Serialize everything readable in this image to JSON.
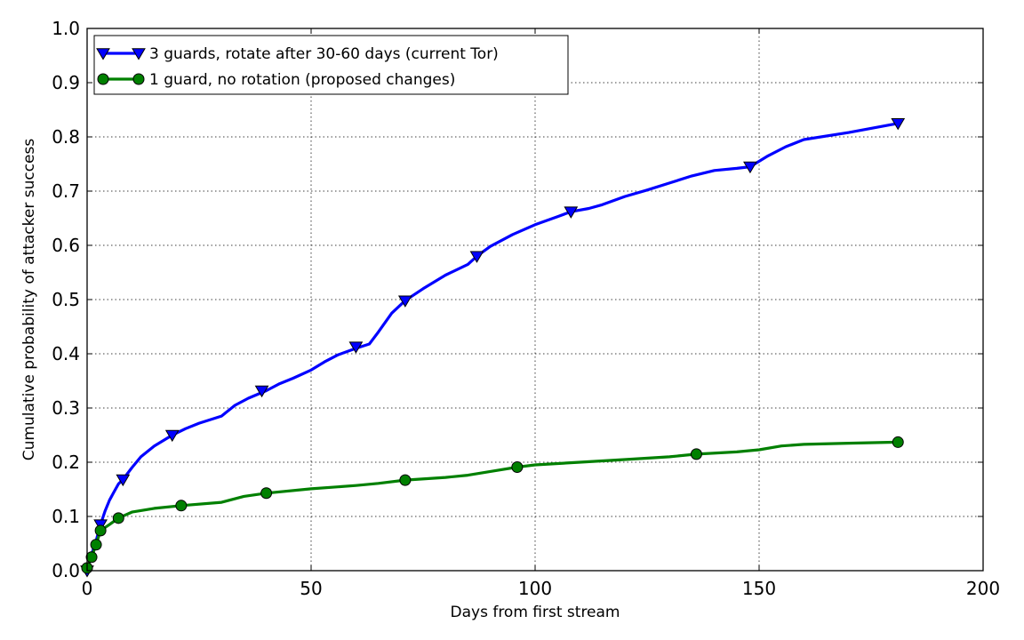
{
  "chart_data": {
    "type": "line",
    "title": "",
    "xlabel": "Days from first stream",
    "ylabel": "Cumulative probability of attacker success",
    "xlim": [
      0,
      200
    ],
    "ylim": [
      0.0,
      1.0
    ],
    "x_ticks": [
      0,
      50,
      100,
      150,
      200
    ],
    "y_ticks": [
      0.0,
      0.1,
      0.2,
      0.3,
      0.4,
      0.5,
      0.6,
      0.7,
      0.8,
      0.9,
      1.0
    ],
    "x_tick_labels": [
      "0",
      "50",
      "100",
      "150",
      "200"
    ],
    "y_tick_labels": [
      "0.0",
      "0.1",
      "0.2",
      "0.3",
      "0.4",
      "0.5",
      "0.6",
      "0.7",
      "0.8",
      "0.9",
      "1.0"
    ],
    "grid": true,
    "legend_position": "top-left",
    "series": [
      {
        "name": "3 guards, rotate after 30-60 days (current Tor)",
        "color": "#0000ff",
        "marker": "triangle-down",
        "x": [
          0,
          1,
          2,
          3,
          4,
          5,
          6,
          7,
          8,
          10,
          12,
          15,
          19,
          22,
          25,
          30,
          33,
          36,
          40,
          43,
          46,
          50,
          53,
          56,
          60,
          63,
          65,
          68,
          71,
          75,
          80,
          85,
          87,
          90,
          95,
          100,
          105,
          108,
          112,
          115,
          120,
          125,
          130,
          135,
          140,
          145,
          148,
          152,
          156,
          160,
          170,
          181
        ],
        "y": [
          0.0,
          0.03,
          0.055,
          0.085,
          0.11,
          0.13,
          0.145,
          0.16,
          0.168,
          0.19,
          0.21,
          0.23,
          0.25,
          0.262,
          0.272,
          0.285,
          0.305,
          0.318,
          0.332,
          0.345,
          0.355,
          0.37,
          0.385,
          0.398,
          0.41,
          0.418,
          0.44,
          0.475,
          0.498,
          0.52,
          0.545,
          0.565,
          0.58,
          0.598,
          0.62,
          0.638,
          0.653,
          0.662,
          0.668,
          0.675,
          0.69,
          0.702,
          0.715,
          0.728,
          0.738,
          0.742,
          0.745,
          0.765,
          0.782,
          0.795,
          0.808,
          0.825
        ],
        "marker_x": [
          0,
          3,
          8,
          19,
          39,
          60,
          71,
          87,
          108,
          148,
          181
        ],
        "marker_y": [
          0.0,
          0.085,
          0.168,
          0.25,
          0.332,
          0.413,
          0.498,
          0.58,
          0.662,
          0.745,
          0.825
        ]
      },
      {
        "name": "1 guard, no rotation (proposed changes)",
        "color": "#008000",
        "marker": "circle",
        "x": [
          0,
          1,
          2,
          3,
          5,
          7,
          10,
          15,
          21,
          30,
          35,
          40,
          50,
          60,
          65,
          71,
          80,
          85,
          90,
          96,
          100,
          110,
          120,
          130,
          136,
          145,
          150,
          155,
          160,
          170,
          181
        ],
        "y": [
          0.005,
          0.025,
          0.048,
          0.074,
          0.085,
          0.097,
          0.108,
          0.115,
          0.12,
          0.126,
          0.137,
          0.143,
          0.151,
          0.157,
          0.161,
          0.167,
          0.172,
          0.176,
          0.183,
          0.191,
          0.195,
          0.2,
          0.205,
          0.21,
          0.215,
          0.219,
          0.223,
          0.23,
          0.233,
          0.235,
          0.237
        ],
        "marker_x": [
          0,
          1,
          2,
          3,
          7,
          21,
          40,
          71,
          96,
          136,
          181
        ],
        "marker_y": [
          0.005,
          0.025,
          0.048,
          0.074,
          0.097,
          0.12,
          0.143,
          0.167,
          0.191,
          0.215,
          0.237
        ]
      }
    ]
  }
}
